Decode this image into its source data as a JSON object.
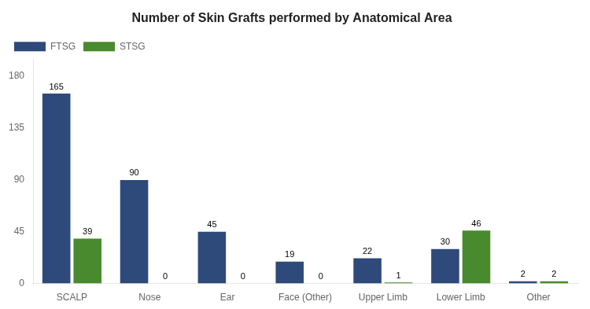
{
  "chart_data": {
    "type": "bar",
    "title": "Number of Skin Grafts performed by Anatomical Area",
    "categories": [
      "SCALP",
      "Nose",
      "Ear",
      "Face (Other)",
      "Upper Limb",
      "Lower Limb",
      "Other"
    ],
    "series": [
      {
        "name": "FTSG",
        "color": "#2E4A7A",
        "values": [
          165,
          90,
          45,
          19,
          22,
          30,
          2
        ]
      },
      {
        "name": "STSG",
        "color": "#4A8A2E",
        "values": [
          39,
          0,
          0,
          0,
          1,
          46,
          2
        ]
      }
    ],
    "ylim": [
      0,
      195
    ],
    "yticks": [
      0,
      45,
      90,
      135,
      180
    ],
    "grid": false,
    "legend": "upper left",
    "data_labels": true
  }
}
